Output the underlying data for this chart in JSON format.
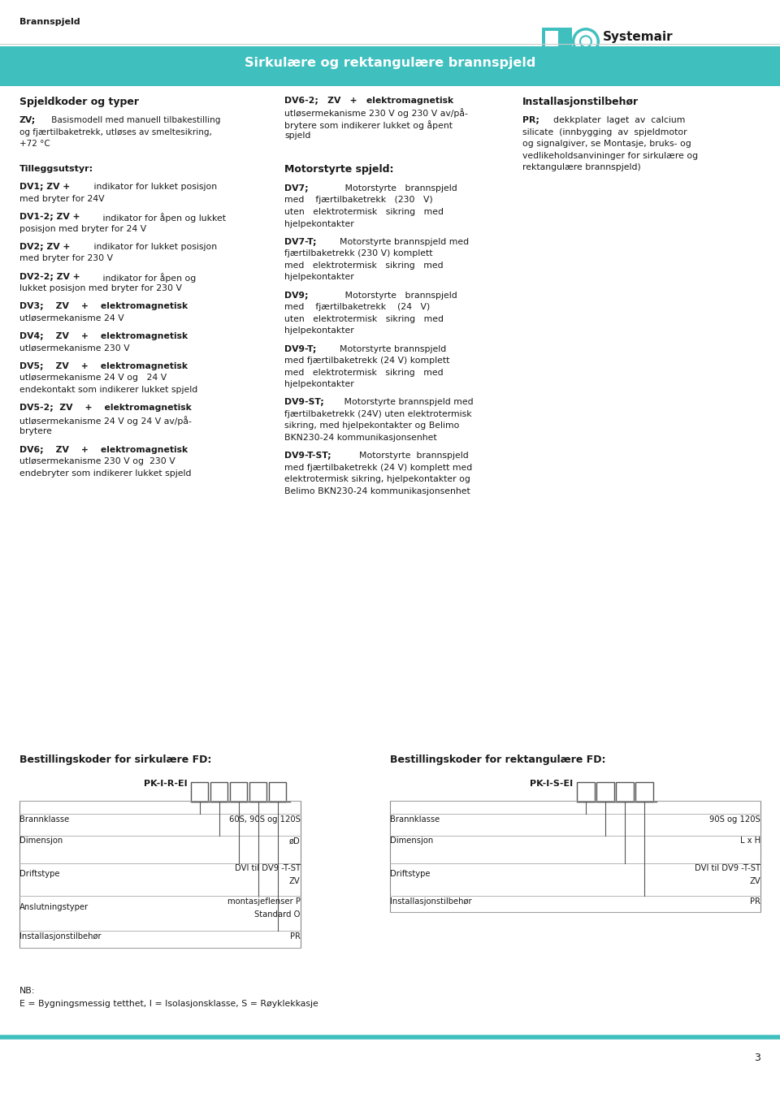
{
  "page_bg": "#ffffff",
  "header_bg": "#40bfbf",
  "header_text": "Sirkulære og rektangulære brannspjeld",
  "header_text_color": "#ffffff",
  "top_label": "Brannspjeld",
  "body_text_color": "#1a1a1a",
  "footer_line_color": "#40bfbf",
  "page_number": "3",
  "c1": 0.025,
  "c2": 0.365,
  "c3": 0.67,
  "lh": 0.0108,
  "ph": 0.0165
}
